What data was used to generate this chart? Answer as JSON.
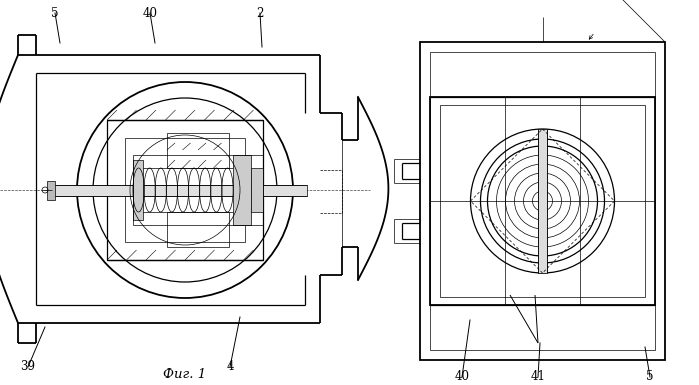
{
  "bg_color": "#ffffff",
  "line_color": "#000000",
  "fig_width": 6.99,
  "fig_height": 3.85,
  "title": "Фиг. 1"
}
